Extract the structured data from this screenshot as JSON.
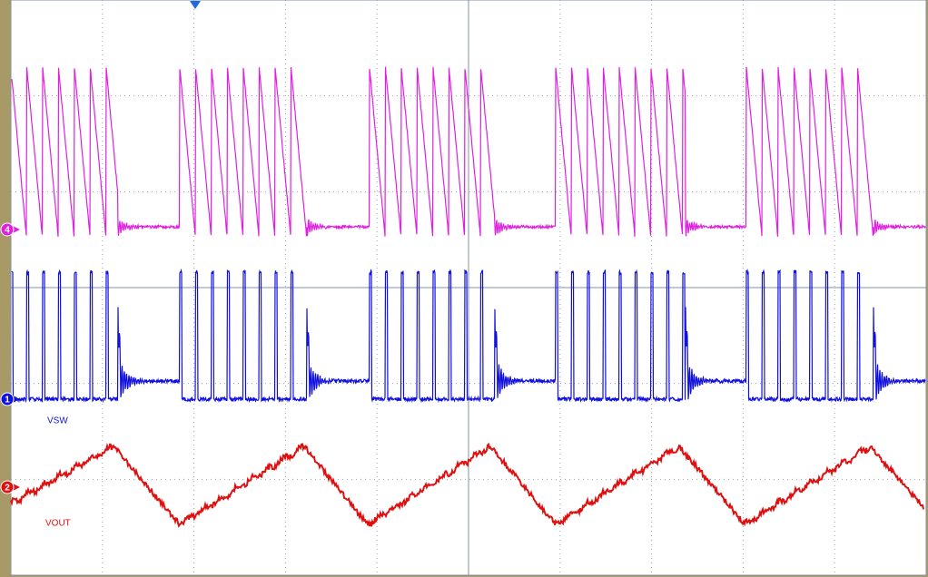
{
  "screen": {
    "channels": [
      {
        "marker": "4",
        "color": "#e020e0"
      },
      {
        "marker": "1",
        "color": "#1010e0",
        "label": "VSW"
      },
      {
        "marker": "2",
        "color": "#e01010",
        "label": "VOUT"
      }
    ]
  }
}
